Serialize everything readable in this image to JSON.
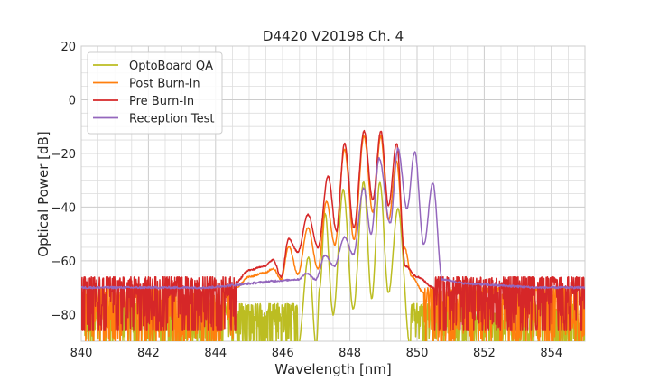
{
  "chart_data": {
    "type": "line",
    "title": "D4420 V20198 Ch. 4",
    "xlabel": "Wavelength [nm]",
    "ylabel": "Optical Power [dB]",
    "xlim": [
      840,
      855
    ],
    "ylim": [
      -90,
      20
    ],
    "xticks": [
      840,
      842,
      844,
      846,
      848,
      850,
      852,
      854
    ],
    "yticks": [
      20,
      0,
      -20,
      -40,
      -60,
      -80
    ],
    "xtick_labels": [
      "840",
      "842",
      "844",
      "846",
      "848",
      "850",
      "852",
      "854"
    ],
    "ytick_labels": [
      "20",
      "0",
      "−20",
      "−40",
      "−60",
      "−80"
    ],
    "grid": true,
    "minor_grid": true,
    "legend_position": "upper-left",
    "series": [
      {
        "name": "OptoBoard QA",
        "color": "#bcbd22",
        "floor_db": [
          -92,
          -76
        ],
        "points": [
          [
            846.45,
            -92
          ],
          [
            846.77,
            -58.6
          ],
          [
            847.0,
            -92
          ],
          [
            847.1,
            -70
          ],
          [
            847.26,
            -42.4
          ],
          [
            847.5,
            -80
          ],
          [
            847.8,
            -33.6
          ],
          [
            848.1,
            -78
          ],
          [
            848.41,
            -30.6
          ],
          [
            848.65,
            -74
          ],
          [
            848.89,
            -30.8
          ],
          [
            849.15,
            -72
          ],
          [
            849.43,
            -40.6
          ],
          [
            849.8,
            -92
          ]
        ]
      },
      {
        "name": "Post Burn-In",
        "color": "#ff7f0e",
        "floor_db": [
          -90,
          -70
        ],
        "points": [
          [
            844.6,
            -70
          ],
          [
            845.0,
            -66
          ],
          [
            845.45,
            -64.5
          ],
          [
            845.72,
            -63
          ],
          [
            845.95,
            -67
          ],
          [
            846.18,
            -54.7
          ],
          [
            846.45,
            -65
          ],
          [
            846.75,
            -47.7
          ],
          [
            847.05,
            -63
          ],
          [
            847.3,
            -38
          ],
          [
            847.55,
            -54
          ],
          [
            847.84,
            -18.6
          ],
          [
            848.12,
            -52
          ],
          [
            848.42,
            -13.6
          ],
          [
            848.68,
            -42
          ],
          [
            848.92,
            -13.6
          ],
          [
            849.15,
            -45
          ],
          [
            849.39,
            -23
          ],
          [
            849.62,
            -55
          ],
          [
            849.85,
            -66
          ],
          [
            850.2,
            -72
          ]
        ]
      },
      {
        "name": "Pre Burn-In",
        "color": "#d62728",
        "floor_db": [
          -86,
          -66
        ],
        "points": [
          [
            844.6,
            -68
          ],
          [
            845.0,
            -63.5
          ],
          [
            845.45,
            -62
          ],
          [
            845.72,
            -59.7
          ],
          [
            845.95,
            -66
          ],
          [
            846.18,
            -51.9
          ],
          [
            846.45,
            -56.7
          ],
          [
            846.75,
            -42.8
          ],
          [
            847.05,
            -55
          ],
          [
            847.35,
            -28.6
          ],
          [
            847.6,
            -49
          ],
          [
            847.84,
            -16.1
          ],
          [
            848.12,
            -47.7
          ],
          [
            848.42,
            -11.7
          ],
          [
            848.68,
            -37.3
          ],
          [
            848.92,
            -11.7
          ],
          [
            849.15,
            -39.5
          ],
          [
            849.39,
            -16.3
          ],
          [
            849.65,
            -62
          ],
          [
            850.0,
            -66
          ],
          [
            850.5,
            -70
          ]
        ]
      },
      {
        "name": "Reception Test",
        "color": "#9467bd",
        "floor_db": [
          -70,
          -68
        ],
        "points": [
          [
            845.8,
            -67.5
          ],
          [
            846.45,
            -67
          ],
          [
            846.72,
            -64.7
          ],
          [
            846.98,
            -67
          ],
          [
            847.26,
            -58
          ],
          [
            847.53,
            -62
          ],
          [
            847.84,
            -51.3
          ],
          [
            848.1,
            -57.7
          ],
          [
            848.41,
            -33
          ],
          [
            848.63,
            -50
          ],
          [
            848.87,
            -21.9
          ],
          [
            849.2,
            -46
          ],
          [
            849.43,
            -18.3
          ],
          [
            849.7,
            -40.6
          ],
          [
            849.93,
            -19.4
          ],
          [
            850.2,
            -54
          ],
          [
            850.47,
            -31
          ],
          [
            850.75,
            -67
          ],
          [
            851.5,
            -68.5
          ]
        ]
      }
    ]
  }
}
